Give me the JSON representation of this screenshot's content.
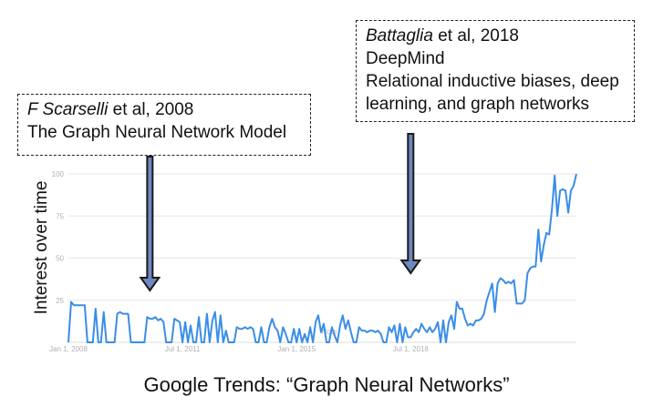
{
  "annotations": {
    "left": {
      "author": "F Scarselli",
      "suffix": " et al, 2008",
      "title": "The Graph Neural Network Model"
    },
    "right": {
      "author": "Battaglia",
      "suffix": " et al, 2018",
      "org": "DeepMind",
      "line3": "Relational inductive biases, deep",
      "line4": "learning, and graph networks"
    }
  },
  "caption": "Google Trends: “Graph Neural Networks”",
  "colors": {
    "series": "#3a8ee6",
    "arrow_fill": "#6f87c0",
    "arrow_stroke": "#1a1a1a",
    "grid": "#e6e6e6"
  },
  "chart_data": {
    "type": "line",
    "ylabel": "Interest over time",
    "xlabel": "",
    "ylim": [
      0,
      100
    ],
    "yticks": [
      25,
      50,
      75,
      100
    ],
    "xticks": [
      "Jan 1, 2008",
      "Jul 1, 2011",
      "Jan 1, 2015",
      "Jul 1, 2018"
    ],
    "tick_note": "Note",
    "x_start": "Jan 2008",
    "x_step": "1 month",
    "values": [
      0,
      24,
      22,
      22,
      22,
      22,
      22,
      0,
      0,
      0,
      20,
      0,
      0,
      18,
      0,
      0,
      0,
      0,
      17,
      18,
      17,
      17,
      17,
      0,
      0,
      0,
      0,
      0,
      0,
      15,
      14,
      14,
      15,
      13,
      14,
      12,
      0,
      0,
      0,
      14,
      13,
      12,
      0,
      12,
      0,
      10,
      0,
      0,
      15,
      0,
      0,
      17,
      0,
      13,
      18,
      0,
      16,
      0,
      7,
      0,
      0,
      0,
      9,
      8,
      8,
      9,
      8,
      9,
      8,
      0,
      0,
      9,
      0,
      0,
      9,
      14,
      9,
      7,
      0,
      9,
      5,
      0,
      0,
      8,
      0,
      8,
      0,
      5,
      0,
      9,
      0,
      12,
      16,
      6,
      11,
      0,
      0,
      9,
      4,
      0,
      10,
      16,
      8,
      13,
      6,
      0,
      0,
      9,
      7,
      7,
      6,
      7,
      7,
      6,
      7,
      5,
      0,
      0,
      9,
      6,
      10,
      0,
      11,
      0,
      9,
      3,
      3,
      6,
      8,
      6,
      11,
      8,
      6,
      9,
      6,
      8,
      12,
      0,
      13,
      0,
      12,
      16,
      8,
      24,
      20,
      20,
      14,
      10,
      11,
      10,
      13,
      13,
      14,
      17,
      25,
      30,
      35,
      18,
      35,
      38,
      37,
      35,
      36,
      35,
      37,
      23,
      23,
      23,
      25,
      41,
      44,
      45,
      45,
      67,
      48,
      58,
      65,
      64,
      79,
      99,
      75,
      90,
      91,
      90,
      77,
      90,
      93,
      100
    ],
    "arrow_points": [
      "Jul 2010",
      "Jul 2018"
    ]
  }
}
